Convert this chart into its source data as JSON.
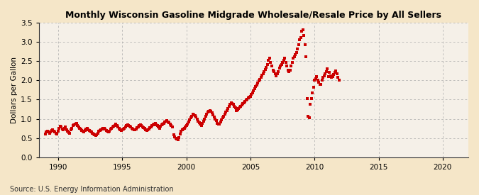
{
  "title": "Monthly Wisconsin Gasoline Midgrade Wholesale/Resale Price by All Sellers",
  "ylabel": "Dollars per Gallon",
  "source": "Source: U.S. Energy Information Administration",
  "background_color": "#f5e6c8",
  "plot_bg_color": "#f5f0e8",
  "dot_color": "#cc0000",
  "dot_size": 6,
  "dot_marker": "s",
  "xlim": [
    1988.5,
    2022
  ],
  "ylim": [
    0.0,
    3.5
  ],
  "yticks": [
    0.0,
    0.5,
    1.0,
    1.5,
    2.0,
    2.5,
    3.0,
    3.5
  ],
  "xticks": [
    1990,
    1995,
    2000,
    2005,
    2010,
    2015,
    2020
  ],
  "grid_color": "#aaaaaa",
  "prices": [
    0.61,
    0.65,
    0.68,
    0.66,
    0.63,
    0.65,
    0.7,
    0.72,
    0.68,
    0.65,
    0.63,
    0.61,
    0.68,
    0.76,
    0.8,
    0.78,
    0.74,
    0.72,
    0.75,
    0.78,
    0.72,
    0.68,
    0.64,
    0.62,
    0.72,
    0.76,
    0.82,
    0.84,
    0.86,
    0.88,
    0.82,
    0.78,
    0.76,
    0.73,
    0.7,
    0.67,
    0.66,
    0.7,
    0.74,
    0.76,
    0.72,
    0.7,
    0.68,
    0.65,
    0.62,
    0.6,
    0.58,
    0.56,
    0.58,
    0.63,
    0.67,
    0.7,
    0.72,
    0.74,
    0.76,
    0.75,
    0.73,
    0.7,
    0.67,
    0.65,
    0.68,
    0.73,
    0.76,
    0.78,
    0.8,
    0.83,
    0.86,
    0.82,
    0.78,
    0.75,
    0.72,
    0.7,
    0.71,
    0.73,
    0.76,
    0.78,
    0.82,
    0.84,
    0.83,
    0.8,
    0.78,
    0.76,
    0.73,
    0.71,
    0.71,
    0.74,
    0.77,
    0.79,
    0.82,
    0.84,
    0.82,
    0.79,
    0.77,
    0.75,
    0.72,
    0.7,
    0.72,
    0.74,
    0.77,
    0.79,
    0.82,
    0.84,
    0.86,
    0.88,
    0.85,
    0.82,
    0.79,
    0.76,
    0.8,
    0.84,
    0.87,
    0.88,
    0.91,
    0.93,
    0.95,
    0.92,
    0.89,
    0.86,
    0.82,
    0.79,
    0.58,
    0.53,
    0.49,
    0.47,
    0.46,
    0.52,
    0.6,
    0.68,
    0.72,
    0.74,
    0.76,
    0.78,
    0.82,
    0.87,
    0.92,
    0.97,
    1.02,
    1.06,
    1.12,
    1.11,
    1.08,
    1.04,
    0.99,
    0.94,
    0.9,
    0.87,
    0.83,
    0.88,
    0.94,
    1.0,
    1.06,
    1.12,
    1.17,
    1.2,
    1.22,
    1.19,
    1.16,
    1.1,
    1.05,
    1.0,
    0.95,
    0.88,
    0.86,
    0.87,
    0.92,
    0.97,
    1.02,
    1.07,
    1.12,
    1.17,
    1.22,
    1.27,
    1.32,
    1.37,
    1.42,
    1.4,
    1.37,
    1.33,
    1.28,
    1.22,
    1.23,
    1.27,
    1.3,
    1.33,
    1.36,
    1.39,
    1.42,
    1.45,
    1.48,
    1.51,
    1.54,
    1.57,
    1.58,
    1.63,
    1.68,
    1.73,
    1.78,
    1.83,
    1.88,
    1.93,
    1.98,
    2.03,
    2.08,
    2.13,
    2.18,
    2.23,
    2.28,
    2.33,
    2.42,
    2.52,
    2.57,
    2.47,
    2.37,
    2.27,
    2.22,
    2.17,
    2.12,
    2.17,
    2.22,
    2.32,
    2.37,
    2.42,
    2.47,
    2.52,
    2.57,
    2.47,
    2.37,
    2.27,
    2.22,
    2.27,
    2.37,
    2.47,
    2.57,
    2.62,
    2.67,
    2.72,
    2.82,
    2.92,
    3.05,
    3.12,
    3.27,
    3.32,
    3.17,
    2.92,
    2.62,
    1.52,
    1.07,
    1.02,
    1.37,
    1.52,
    1.67,
    1.82,
    2.0,
    2.05,
    2.1,
    2.0,
    1.95,
    1.9,
    1.9,
    2.0,
    2.07,
    2.12,
    2.17,
    2.22,
    2.3,
    2.1,
    2.2,
    2.12,
    2.07,
    2.1,
    2.15,
    2.2,
    2.25,
    2.18,
    2.07,
    2.0
  ],
  "start_year": 1989,
  "start_month": 1
}
